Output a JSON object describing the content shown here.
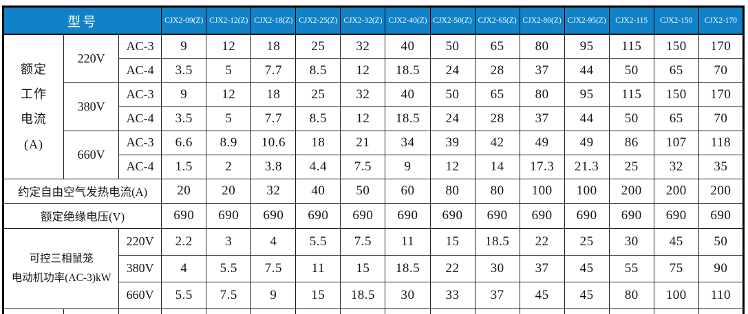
{
  "table": {
    "colors": {
      "header_bg": "#1182c8",
      "header_text": "#ffffff",
      "grid_border": "#1f1f1f",
      "outer_border": "#000000"
    },
    "header": {
      "model_label": "型号",
      "models": [
        "CJX2-09(Z)",
        "CJX2-12(Z)",
        "CJX2-18(Z)",
        "CJX2-25(Z)",
        "CJX2-32(Z)",
        "CJX2-40(Z)",
        "CJX2-50(Z)",
        "CJX2-65(Z)",
        "CJX2-80(Z)",
        "CJX2-95(Z)",
        "CJX2-115",
        "CJX2-150",
        "CJX2-170"
      ]
    },
    "rated_current": {
      "label": "额定\n工作\n电流\n(A)",
      "groups": [
        {
          "voltage": "220V",
          "rows": [
            {
              "duty": "AC-3",
              "values": [
                9,
                12,
                18,
                25,
                32,
                40,
                50,
                65,
                80,
                95,
                115,
                150,
                170
              ]
            },
            {
              "duty": "AC-4",
              "values": [
                3.5,
                5,
                7.7,
                8.5,
                12,
                18.5,
                24,
                28,
                37,
                44,
                50,
                65,
                70
              ]
            }
          ]
        },
        {
          "voltage": "380V",
          "rows": [
            {
              "duty": "AC-3",
              "values": [
                9,
                12,
                18,
                25,
                32,
                40,
                50,
                65,
                80,
                95,
                115,
                150,
                170
              ]
            },
            {
              "duty": "AC-4",
              "values": [
                3.5,
                5,
                7.7,
                8.5,
                12,
                18.5,
                24,
                28,
                37,
                44,
                50,
                65,
                70
              ]
            }
          ]
        },
        {
          "voltage": "660V",
          "rows": [
            {
              "duty": "AC-3",
              "values": [
                6.6,
                8.9,
                10.6,
                18,
                21,
                34,
                39,
                42,
                49,
                49,
                86,
                107,
                118
              ]
            },
            {
              "duty": "AC-4",
              "values": [
                1.5,
                2,
                3.8,
                4.4,
                7.5,
                9,
                12,
                14,
                17.3,
                21.3,
                25,
                32,
                35
              ]
            }
          ]
        }
      ]
    },
    "thermal_current": {
      "label": "约定自由空气发热电流(A)",
      "values": [
        20,
        20,
        32,
        40,
        50,
        60,
        80,
        80,
        100,
        100,
        200,
        200,
        200
      ]
    },
    "insulation_voltage": {
      "label": "额定绝缘电压(V)",
      "values": [
        690,
        690,
        690,
        690,
        690,
        690,
        690,
        690,
        690,
        690,
        690,
        690,
        690
      ]
    },
    "motor_power": {
      "label": "可控三相鼠笼\n电动机功率(AC-3)kW",
      "rows": [
        {
          "voltage": "220V",
          "values": [
            2.2,
            3,
            4,
            5.5,
            7.5,
            11,
            15,
            18.5,
            22,
            25,
            30,
            45,
            50
          ]
        },
        {
          "voltage": "380V",
          "values": [
            4,
            5.5,
            7.5,
            11,
            15,
            18.5,
            22,
            30,
            37,
            45,
            55,
            75,
            90
          ]
        },
        {
          "voltage": "660V",
          "values": [
            5.5,
            7.5,
            9,
            15,
            18.5,
            30,
            33,
            37,
            45,
            45,
            80,
            100,
            110
          ]
        }
      ]
    }
  }
}
